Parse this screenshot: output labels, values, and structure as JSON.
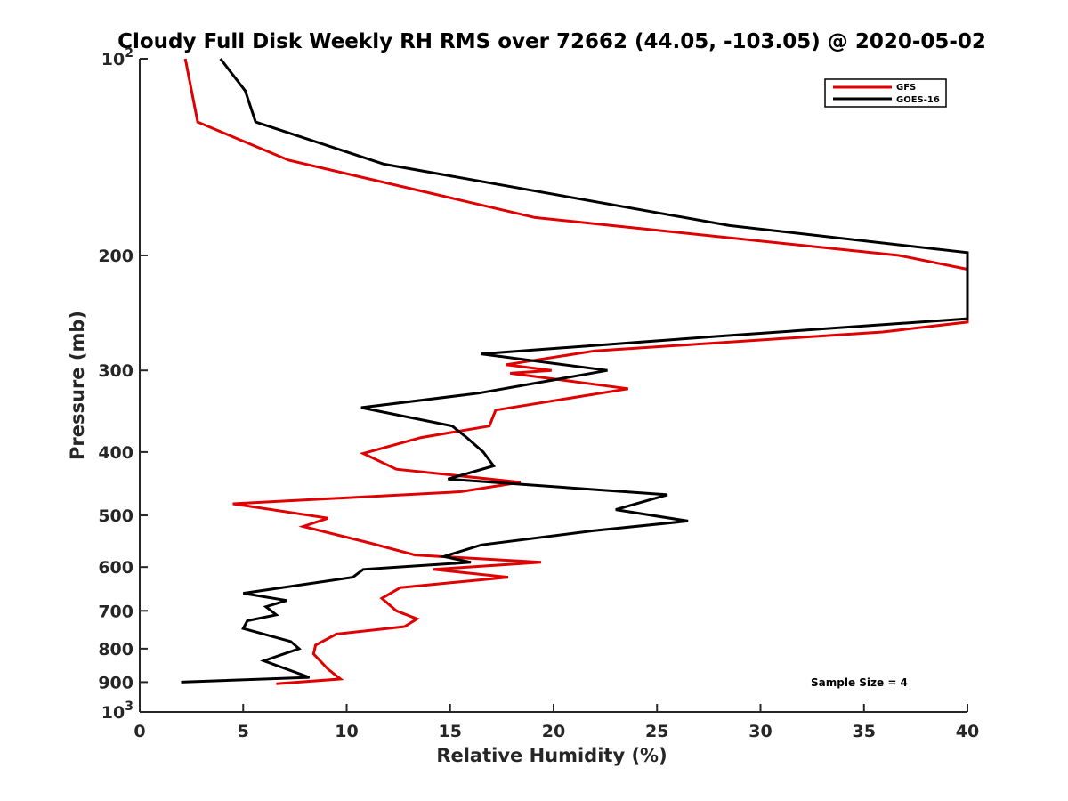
{
  "chart_data": {
    "type": "line",
    "title": "Cloudy Full Disk Weekly RH RMS over 72662 (44.05, -103.05) @ 2020-05-02",
    "xlabel": "Relative Humidity (%)",
    "ylabel": "Pressure (mb)",
    "xlim": [
      0,
      40
    ],
    "ylim": [
      100,
      1000
    ],
    "y_scale": "log",
    "y_reversed": true,
    "grid": false,
    "legend_position": "top-right",
    "x_ticks": [
      0,
      5,
      10,
      15,
      20,
      25,
      30,
      35,
      40
    ],
    "x_tick_labels": [
      "0",
      "5",
      "10",
      "15",
      "20",
      "25",
      "30",
      "35",
      "40"
    ],
    "y_ticks": [
      100,
      200,
      300,
      400,
      500,
      600,
      700,
      800,
      900,
      1000
    ],
    "y_tick_labels": [
      "10^2",
      "200",
      "300",
      "400",
      "500",
      "600",
      "700",
      "800",
      "900",
      "10^3"
    ],
    "annotation": "Sample Size = 4",
    "series": [
      {
        "name": "GFS",
        "color": "#e00000",
        "points": [
          [
            2.2,
            100
          ],
          [
            2.8,
            125
          ],
          [
            7.2,
            143
          ],
          [
            19.1,
            175
          ],
          [
            36.7,
            200
          ],
          [
            40.0,
            210
          ],
          [
            40.0,
            253
          ],
          [
            35.9,
            262
          ],
          [
            22.0,
            280
          ],
          [
            17.7,
            294
          ],
          [
            19.9,
            300
          ],
          [
            17.9,
            303
          ],
          [
            23.6,
            320
          ],
          [
            17.2,
            345
          ],
          [
            16.9,
            365
          ],
          [
            13.6,
            380
          ],
          [
            10.8,
            402
          ],
          [
            12.4,
            425
          ],
          [
            18.4,
            445
          ],
          [
            15.5,
            460
          ],
          [
            4.5,
            480
          ],
          [
            9.1,
            505
          ],
          [
            7.9,
            520
          ],
          [
            11.1,
            551
          ],
          [
            13.3,
            575
          ],
          [
            19.4,
            590
          ],
          [
            14.2,
            605
          ],
          [
            17.8,
            622
          ],
          [
            12.6,
            645
          ],
          [
            11.7,
            670
          ],
          [
            12.4,
            700
          ],
          [
            13.4,
            720
          ],
          [
            12.8,
            740
          ],
          [
            9.5,
            760
          ],
          [
            8.5,
            790
          ],
          [
            8.4,
            815
          ],
          [
            9.1,
            860
          ],
          [
            9.7,
            890
          ],
          [
            6.6,
            905
          ]
        ]
      },
      {
        "name": "GOES-16",
        "color": "#000000",
        "points": [
          [
            3.9,
            100
          ],
          [
            5.1,
            112
          ],
          [
            5.6,
            125
          ],
          [
            11.8,
            145
          ],
          [
            28.5,
            180
          ],
          [
            40.0,
            198
          ],
          [
            40.0,
            250
          ],
          [
            27.9,
            266
          ],
          [
            16.5,
            283
          ],
          [
            22.6,
            300
          ],
          [
            16.4,
            325
          ],
          [
            10.7,
            342
          ],
          [
            15.1,
            365
          ],
          [
            15.8,
            380
          ],
          [
            16.6,
            400
          ],
          [
            17.1,
            420
          ],
          [
            14.9,
            440
          ],
          [
            25.5,
            465
          ],
          [
            23.0,
            490
          ],
          [
            26.5,
            510
          ],
          [
            21.9,
            528
          ],
          [
            16.5,
            555
          ],
          [
            14.7,
            578
          ],
          [
            16.0,
            590
          ],
          [
            10.8,
            605
          ],
          [
            10.3,
            622
          ],
          [
            5.0,
            658
          ],
          [
            7.1,
            675
          ],
          [
            6.1,
            690
          ],
          [
            6.6,
            710
          ],
          [
            5.2,
            725
          ],
          [
            5.0,
            745
          ],
          [
            7.3,
            780
          ],
          [
            7.7,
            800
          ],
          [
            6.0,
            835
          ],
          [
            8.2,
            885
          ],
          [
            2.0,
            900
          ]
        ]
      }
    ]
  }
}
